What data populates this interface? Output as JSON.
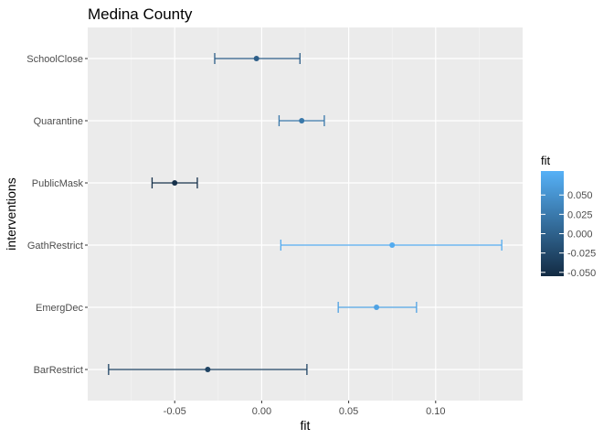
{
  "chart_data": {
    "type": "scatter",
    "title": "Medina County",
    "xlabel": "fit",
    "ylabel": "interventions",
    "xlim": [
      -0.1,
      0.15
    ],
    "x_ticks": [
      -0.05,
      0.0,
      0.05,
      0.1
    ],
    "x_tick_labels": [
      "-0.05",
      "0.00",
      "0.05",
      "0.10"
    ],
    "categories": [
      "BarRestrict",
      "EmergDec",
      "GathRestrict",
      "PublicMask",
      "Quarantine",
      "SchoolClose"
    ],
    "points": [
      {
        "label": "BarRestrict",
        "fit": -0.031,
        "lower": -0.088,
        "upper": 0.026
      },
      {
        "label": "EmergDec",
        "fit": 0.066,
        "lower": 0.044,
        "upper": 0.089
      },
      {
        "label": "GathRestrict",
        "fit": 0.075,
        "lower": 0.011,
        "upper": 0.138
      },
      {
        "label": "PublicMask",
        "fit": -0.05,
        "lower": -0.063,
        "upper": -0.037
      },
      {
        "label": "Quarantine",
        "fit": 0.023,
        "lower": 0.01,
        "upper": 0.036
      },
      {
        "label": "SchoolClose",
        "fit": -0.003,
        "lower": -0.027,
        "upper": 0.022
      }
    ],
    "grid": true,
    "panel_color": "#ebebeb",
    "legend": {
      "title": "fit",
      "placement": "right",
      "range": [
        -0.055,
        0.081
      ],
      "ticks": [
        0.05,
        0.025,
        0.0,
        -0.025,
        -0.05
      ],
      "tick_labels": [
        "0.050",
        "0.025",
        "0.000",
        "-0.025",
        "-0.050"
      ],
      "low_color": "#132b43",
      "high_color": "#56b1f7"
    }
  }
}
